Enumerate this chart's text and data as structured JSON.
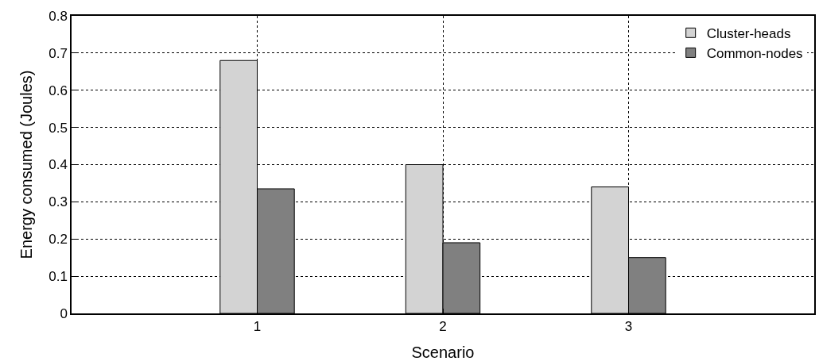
{
  "chart_data": {
    "type": "bar",
    "xlabel": "Scenario",
    "ylabel": "Energy consumed (Joules)",
    "x": [
      1,
      2,
      3
    ],
    "xlim": [
      0,
      4
    ],
    "xticks": [
      1,
      2,
      3
    ],
    "ylim": [
      0,
      0.8
    ],
    "yticks": [
      0,
      0.1,
      0.2,
      0.3,
      0.4,
      0.5,
      0.6,
      0.7,
      0.8
    ],
    "series": [
      {
        "name": "Cluster-heads",
        "color": "#d3d3d3",
        "values": [
          0.68,
          0.4,
          0.34
        ]
      },
      {
        "name": "Common-nodes",
        "color": "#808080",
        "values": [
          0.335,
          0.19,
          0.15
        ]
      }
    ],
    "grid": true,
    "legend": "top right"
  }
}
